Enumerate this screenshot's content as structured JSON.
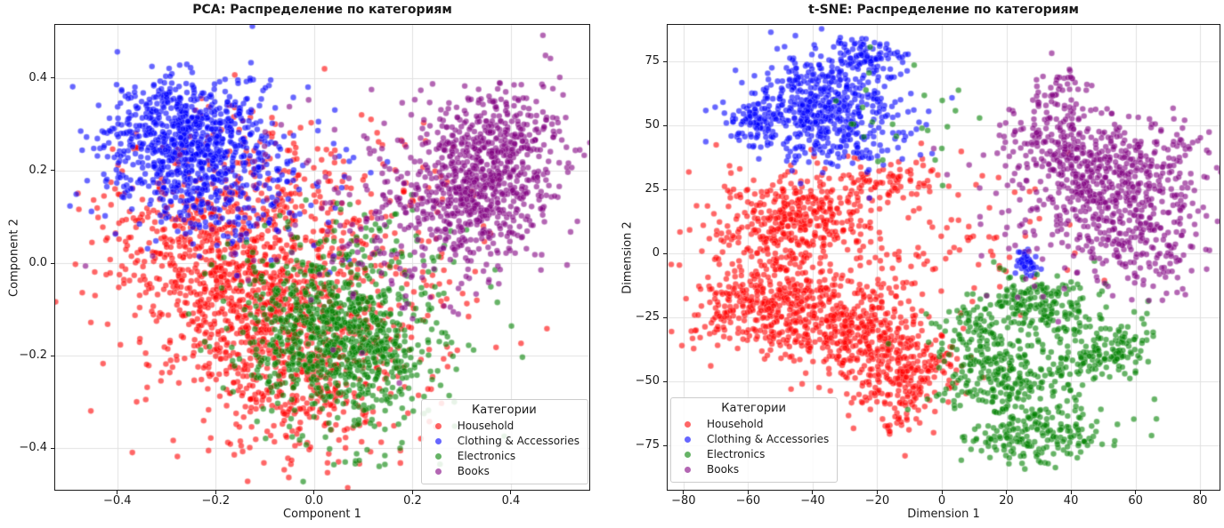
{
  "figure": {
    "background": "#ffffff"
  },
  "chart_data": [
    {
      "type": "scatter",
      "title": "PCA: Распределение по категориям",
      "xlabel": "Component 1",
      "ylabel": "Component 2",
      "xlim": [
        -0.528,
        0.561
      ],
      "ylim": [
        -0.492,
        0.517
      ],
      "xtick_values": [
        -0.4,
        -0.2,
        0.0,
        0.2,
        0.4
      ],
      "xtick_labels": [
        "−0.4",
        "−0.2",
        "0.0",
        "0.2",
        "0.4"
      ],
      "ytick_values": [
        0.4,
        0.2,
        0.0,
        -0.2,
        -0.4
      ],
      "ytick_labels": [
        "0.4",
        "0.2",
        "0.0",
        "−0.2",
        "−0.4"
      ],
      "grid": true,
      "grid_color": "#e0e0e0",
      "legend": {
        "title": "Категории",
        "position": "lower-right"
      },
      "point_style": {
        "alpha": 0.6,
        "radius": 3.3,
        "edge": "rgba(255,255,255,0.45)"
      },
      "series": [
        {
          "name": "Household",
          "color": "#ff0000",
          "clusters": [
            {
              "cx": -0.17,
              "cy": 0.0,
              "sx": 0.1,
              "sy": 0.09,
              "n": 500
            },
            {
              "cx": -0.05,
              "cy": -0.15,
              "sx": 0.11,
              "sy": 0.1,
              "n": 500
            },
            {
              "cx": -0.08,
              "cy": -0.04,
              "sx": 0.17,
              "sy": 0.15,
              "n": 400
            },
            {
              "cx": 0.0,
              "cy": -0.31,
              "sx": 0.1,
              "sy": 0.07,
              "n": 150
            },
            {
              "cx": -0.06,
              "cy": 0.2,
              "sx": 0.12,
              "sy": 0.08,
              "n": 100
            },
            {
              "cx": 0.24,
              "cy": 0.05,
              "sx": 0.1,
              "sy": 0.1,
              "n": 40
            },
            {
              "cx": -0.33,
              "cy": 0.1,
              "sx": 0.07,
              "sy": 0.08,
              "n": 80
            }
          ]
        },
        {
          "name": "Clothing & Accessories",
          "color": "#0000ff",
          "clusters": [
            {
              "cx": -0.26,
              "cy": 0.26,
              "sx": 0.085,
              "sy": 0.065,
              "n": 650
            },
            {
              "cx": -0.21,
              "cy": 0.16,
              "sx": 0.1,
              "sy": 0.06,
              "n": 200
            },
            {
              "cx": -0.12,
              "cy": 0.22,
              "sx": 0.13,
              "sy": 0.09,
              "n": 80
            },
            {
              "cx": -0.3,
              "cy": 0.35,
              "sx": 0.06,
              "sy": 0.04,
              "n": 60
            }
          ]
        },
        {
          "name": "Electronics",
          "color": "#008000",
          "clusters": [
            {
              "cx": 0.08,
              "cy": -0.18,
              "sx": 0.085,
              "sy": 0.085,
              "n": 550
            },
            {
              "cx": 0.0,
              "cy": -0.12,
              "sx": 0.08,
              "sy": 0.08,
              "n": 200
            },
            {
              "cx": 0.05,
              "cy": -0.15,
              "sx": 0.14,
              "sy": 0.12,
              "n": 150
            },
            {
              "cx": 0.1,
              "cy": 0.02,
              "sx": 0.1,
              "sy": 0.06,
              "n": 60
            }
          ]
        },
        {
          "name": "Books",
          "color": "#800080",
          "clusters": [
            {
              "cx": 0.36,
              "cy": 0.2,
              "sx": 0.075,
              "sy": 0.08,
              "n": 550
            },
            {
              "cx": 0.27,
              "cy": 0.12,
              "sx": 0.09,
              "sy": 0.09,
              "n": 250
            },
            {
              "cx": 0.16,
              "cy": 0.08,
              "sx": 0.12,
              "sy": 0.12,
              "n": 100
            },
            {
              "cx": 0.42,
              "cy": 0.3,
              "sx": 0.06,
              "sy": 0.06,
              "n": 80
            },
            {
              "cx": -0.15,
              "cy": 0.08,
              "sx": 0.15,
              "sy": 0.12,
              "n": 20
            }
          ]
        }
      ]
    },
    {
      "type": "scatter",
      "title": "t-SNE: Распределение по категориям",
      "xlabel": "Dimension 1",
      "ylabel": "Dimension 2",
      "xlim": [
        -85.2,
        86.3
      ],
      "ylim": [
        -92.7,
        89.6
      ],
      "xtick_values": [
        -80,
        -60,
        -40,
        -20,
        0,
        20,
        40,
        60,
        80
      ],
      "xtick_labels": [
        "−80",
        "−60",
        "−40",
        "−20",
        "0",
        "20",
        "40",
        "60",
        "80"
      ],
      "ytick_values": [
        75,
        50,
        25,
        0,
        -25,
        -50,
        -75
      ],
      "ytick_labels": [
        "75",
        "50",
        "25",
        "0",
        "−25",
        "−50",
        "−75"
      ],
      "grid": true,
      "grid_color": "#e0e0e0",
      "legend": {
        "title": "Категории",
        "position": "lower-left"
      },
      "point_style": {
        "alpha": 0.6,
        "radius": 3.3,
        "edge": "rgba(255,255,255,0.45)"
      },
      "series": [
        {
          "name": "Household",
          "color": "#ff0000",
          "clusters": [
            {
              "cx": -45,
              "cy": 14,
              "sx": 12,
              "sy": 8,
              "n": 320
            },
            {
              "cx": -52,
              "cy": -20,
              "sx": 12,
              "sy": 10,
              "n": 380
            },
            {
              "cx": -27,
              "cy": -30,
              "sx": 11,
              "sy": 9,
              "n": 280
            },
            {
              "cx": -12,
              "cy": -45,
              "sx": 9,
              "sy": 8,
              "n": 220
            },
            {
              "cx": -30,
              "cy": -5,
              "sx": 24,
              "sy": 20,
              "n": 220
            },
            {
              "cx": -15,
              "cy": 28,
              "sx": 8,
              "sy": 5,
              "n": 70
            },
            {
              "cx": -13,
              "cy": -65,
              "sx": 5,
              "sy": 5,
              "n": 40
            },
            {
              "cx": 15,
              "cy": 8,
              "sx": 14,
              "sy": 12,
              "n": 30
            }
          ]
        },
        {
          "name": "Clothing & Accessories",
          "color": "#0000ff",
          "clusters": [
            {
              "cx": -38,
              "cy": 60,
              "sx": 11,
              "sy": 9,
              "n": 400
            },
            {
              "cx": -24,
              "cy": 77,
              "sx": 6,
              "sy": 3.5,
              "n": 90
            },
            {
              "cx": -57,
              "cy": 51,
              "sx": 5,
              "sy": 4,
              "n": 70
            },
            {
              "cx": -33,
              "cy": 42,
              "sx": 12,
              "sy": 5,
              "n": 90
            },
            {
              "cx": 26,
              "cy": -4,
              "sx": 2.5,
              "sy": 3,
              "n": 40
            },
            {
              "cx": -32,
              "cy": 55,
              "sx": 18,
              "sy": 14,
              "n": 60
            }
          ]
        },
        {
          "name": "Electronics",
          "color": "#008000",
          "clusters": [
            {
              "cx": 30,
              "cy": -20,
              "sx": 9,
              "sy": 5,
              "n": 160
            },
            {
              "cx": 52,
              "cy": -38,
              "sx": 8,
              "sy": 6,
              "n": 140
            },
            {
              "cx": 30,
              "cy": -72,
              "sx": 10,
              "sy": 5,
              "n": 160
            },
            {
              "cx": 20,
              "cy": -50,
              "sx": 10,
              "sy": 8,
              "n": 190
            },
            {
              "cx": 10,
              "cy": -32,
              "sx": 7,
              "sy": 7,
              "n": 90
            },
            {
              "cx": 28,
              "cy": -45,
              "sx": 17,
              "sy": 16,
              "n": 120
            },
            {
              "cx": -15,
              "cy": 52,
              "sx": 18,
              "sy": 12,
              "n": 25
            }
          ]
        },
        {
          "name": "Books",
          "color": "#800080",
          "clusters": [
            {
              "cx": 48,
              "cy": 30,
              "sx": 12,
              "sy": 12,
              "n": 380
            },
            {
              "cx": 62,
              "cy": 5,
              "sx": 10,
              "sy": 11,
              "n": 170
            },
            {
              "cx": 33,
              "cy": 48,
              "sx": 7,
              "sy": 7,
              "n": 110
            },
            {
              "cx": 72,
              "cy": 30,
              "sx": 7,
              "sy": 13,
              "n": 90
            },
            {
              "cx": 45,
              "cy": 18,
              "sx": 18,
              "sy": 18,
              "n": 120
            },
            {
              "cx": 37,
              "cy": 66,
              "sx": 4,
              "sy": 4,
              "n": 30
            }
          ]
        }
      ]
    }
  ]
}
